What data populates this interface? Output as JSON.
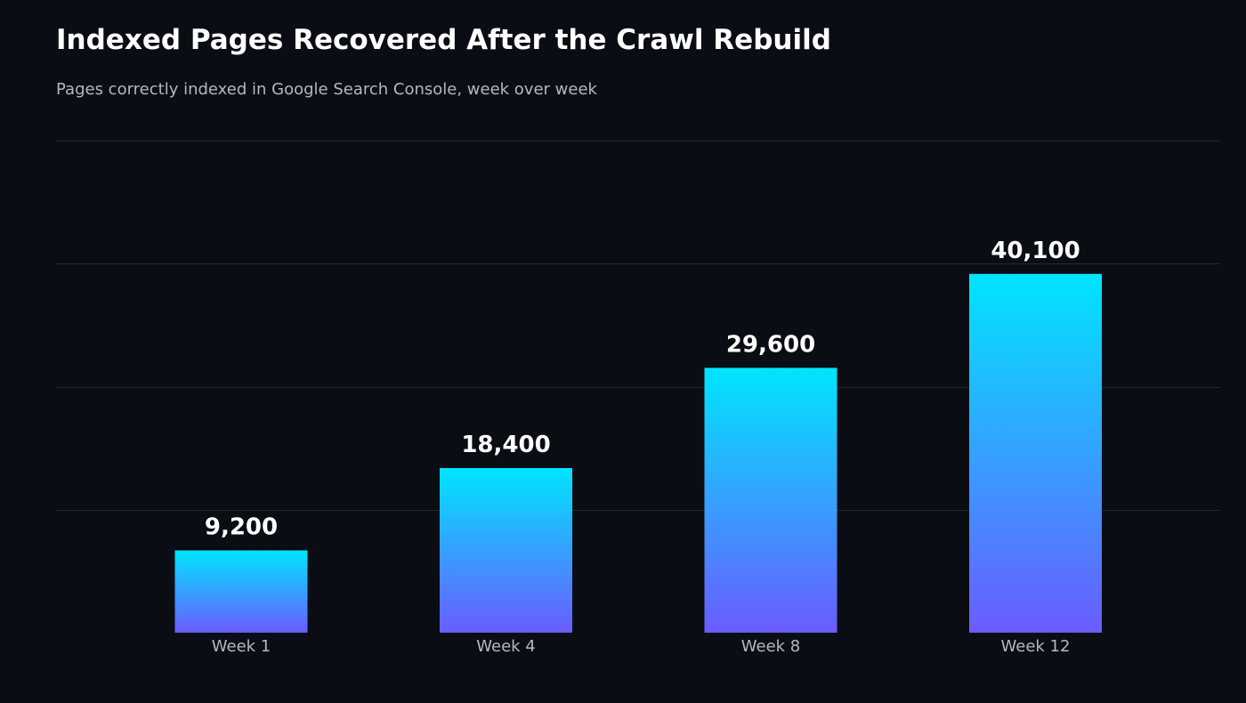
{
  "colors": {
    "background": "#0b0d14",
    "title": "#ffffff",
    "subtitle": "#b4b7c1",
    "gridline": "#25272f",
    "bar_top": "#00e5ff",
    "bar_bottom": "#6a5cff",
    "value_label": "#ffffff",
    "tick_label": "#b4b7c1"
  },
  "chart_data": {
    "type": "bar",
    "title": "Indexed Pages Recovered After the Crawl Rebuild",
    "subtitle": "Pages correctly indexed in Google Search Console, week over week",
    "xlabel": "",
    "ylabel": "",
    "categories": [
      "Week 1",
      "Week 4",
      "Week 8",
      "Week 12"
    ],
    "values": [
      9200,
      18400,
      29600,
      40100
    ],
    "value_labels": [
      "9,200",
      "18,400",
      "29,600",
      "40,100"
    ],
    "ylim": [
      0,
      55000
    ],
    "y_gridlines": [
      13750,
      27500,
      41250,
      55000
    ],
    "grid": true,
    "y_tick_labels_shown": false,
    "legend": "none",
    "bar_fill": "vertical gradient"
  }
}
